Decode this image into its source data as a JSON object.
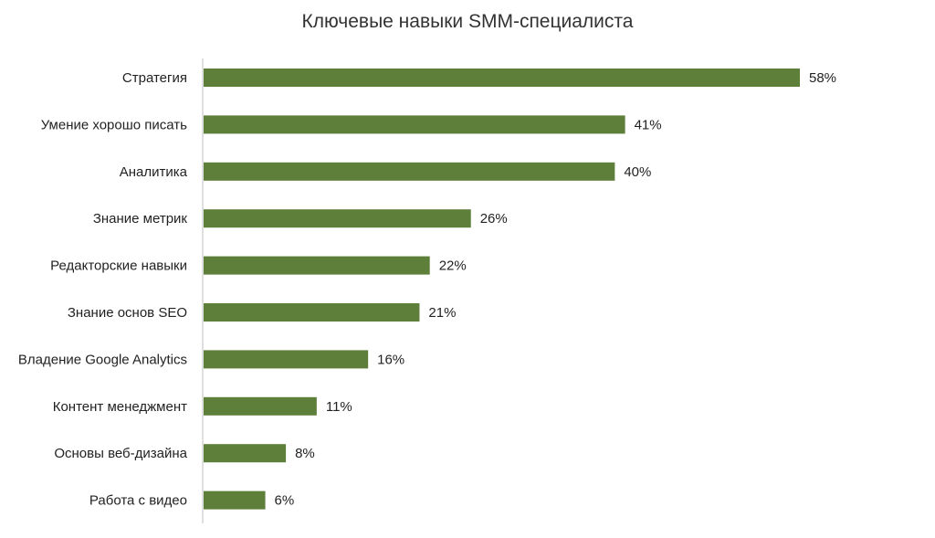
{
  "chart_data": {
    "type": "bar",
    "orientation": "horizontal",
    "title": "Ключевые навыки SMM-специалиста",
    "xlabel": "",
    "ylabel": "",
    "categories": [
      "Стратегия",
      "Умение хорошо писать",
      "Аналитика",
      "Знание метрик",
      "Редакторские навыки",
      "Знание основ SEO",
      "Владение Google Analytics",
      "Контент менеджмент",
      "Основы веб-дизайна",
      "Работа с видео"
    ],
    "values": [
      58,
      41,
      40,
      26,
      22,
      21,
      16,
      11,
      8,
      6
    ],
    "value_labels": [
      "58%",
      "41%",
      "40%",
      "26%",
      "22%",
      "21%",
      "16%",
      "11%",
      "8%",
      "6%"
    ],
    "unit": "%",
    "xlim": [
      0,
      58
    ],
    "grid": false,
    "legend": "none",
    "bar_color": "#5e7f39",
    "axis_color": "#bfbfbf"
  }
}
